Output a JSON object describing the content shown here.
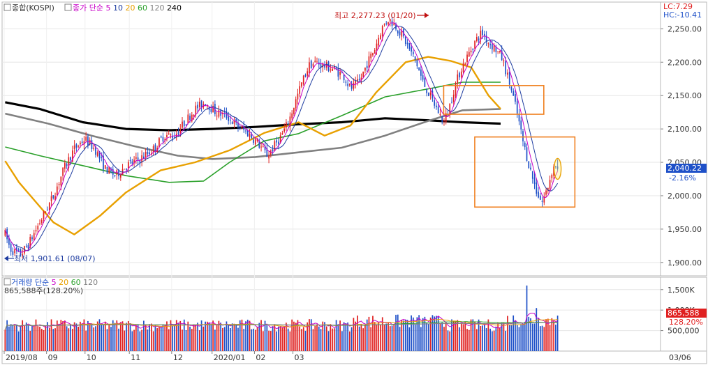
{
  "header": {
    "checkbox_label": "종합(KOSPI)",
    "ma_label": "종가 단순",
    "ma_periods": [
      {
        "label": "5",
        "color": "#c800c8"
      },
      {
        "label": "10",
        "color": "#1e3ca0"
      },
      {
        "label": "20",
        "color": "#e8a000"
      },
      {
        "label": "60",
        "color": "#2aa02a"
      },
      {
        "label": "120",
        "color": "#808080"
      },
      {
        "label": "240",
        "color": "#000000"
      }
    ],
    "lc": "LC:7.29",
    "hc": "HC:-10.41"
  },
  "annotations": {
    "high": "최고 2,277.23 (01/20)",
    "low": "최저 1,901.61 (08/07)"
  },
  "price_axis": {
    "ticks": [
      "2,250.00",
      "2,200.00",
      "2,150.00",
      "2,100.00",
      "2,050.00",
      "2,000.00",
      "1,950.00",
      "1,900.00"
    ],
    "current_value": "2,040.22",
    "current_change": "-2.16%"
  },
  "volume_panel": {
    "ma_label": "거래량 단순",
    "ma_periods": [
      {
        "label": "5",
        "color": "#c800c8"
      },
      {
        "label": "20",
        "color": "#e8a000"
      },
      {
        "label": "60",
        "color": "#2aa02a"
      },
      {
        "label": "120",
        "color": "#808080"
      }
    ],
    "readout": "865,588주(128.20%)",
    "ticks": [
      "1,500K",
      "1,000K",
      "500,000"
    ],
    "current_value": "865,588",
    "current_change": "128.20%"
  },
  "x_axis": {
    "labels": [
      "2019/08",
      "09",
      "10",
      "11",
      "12",
      "2020/01",
      "02",
      "03",
      "03/06"
    ]
  },
  "colors": {
    "up": "#e02020",
    "down": "#1e50c8",
    "ma5": "#c800c8",
    "ma10": "#1e3ca0",
    "ma20": "#e8a000",
    "ma60": "#2aa02a",
    "ma120": "#808080",
    "ma240": "#000000",
    "highlight_box": "#f08020",
    "current_badge": "#1e50c8",
    "volume_badge": "#e02020"
  },
  "chart_data": {
    "type": "candlestick",
    "title": "종합(KOSPI)",
    "price_ylim": [
      1880,
      2290
    ],
    "volume_ylim": [
      0,
      1700000
    ],
    "x_months": [
      "2019/08",
      "09",
      "10",
      "11",
      "12",
      "2020/01",
      "02",
      "03"
    ],
    "ma_lines": {
      "ma20": [
        [
          0,
          2052
        ],
        [
          8,
          2020
        ],
        [
          18,
          1990
        ],
        [
          28,
          1960
        ],
        [
          40,
          1942
        ],
        [
          55,
          1970
        ],
        [
          70,
          2005
        ],
        [
          90,
          2038
        ],
        [
          110,
          2050
        ],
        [
          130,
          2068
        ],
        [
          150,
          2094
        ],
        [
          170,
          2110
        ],
        [
          185,
          2090
        ],
        [
          200,
          2105
        ],
        [
          215,
          2155
        ],
        [
          232,
          2200
        ],
        [
          245,
          2208
        ],
        [
          258,
          2202
        ],
        [
          270,
          2192
        ],
        [
          280,
          2150
        ],
        [
          287,
          2130
        ]
      ],
      "ma60": [
        [
          0,
          2073
        ],
        [
          20,
          2060
        ],
        [
          45,
          2045
        ],
        [
          70,
          2030
        ],
        [
          95,
          2020
        ],
        [
          115,
          2022
        ],
        [
          130,
          2050
        ],
        [
          150,
          2082
        ],
        [
          170,
          2093
        ],
        [
          195,
          2120
        ],
        [
          220,
          2148
        ],
        [
          245,
          2160
        ],
        [
          265,
          2170
        ],
        [
          287,
          2170
        ]
      ],
      "ma120": [
        [
          0,
          2123
        ],
        [
          25,
          2108
        ],
        [
          50,
          2090
        ],
        [
          75,
          2074
        ],
        [
          100,
          2060
        ],
        [
          120,
          2055
        ],
        [
          145,
          2058
        ],
        [
          170,
          2065
        ],
        [
          195,
          2072
        ],
        [
          220,
          2090
        ],
        [
          245,
          2112
        ],
        [
          265,
          2128
        ],
        [
          287,
          2130
        ]
      ],
      "ma240": [
        [
          0,
          2140
        ],
        [
          20,
          2130
        ],
        [
          45,
          2110
        ],
        [
          70,
          2100
        ],
        [
          95,
          2098
        ],
        [
          120,
          2100
        ],
        [
          145,
          2103
        ],
        [
          170,
          2107
        ],
        [
          195,
          2110
        ],
        [
          220,
          2116
        ],
        [
          245,
          2113
        ],
        [
          265,
          2110
        ],
        [
          287,
          2108
        ]
      ]
    },
    "highlights": [
      {
        "x0": 254,
        "x1": 312,
        "y0": 2122,
        "y1": 2165
      },
      {
        "x0": 272,
        "x1": 330,
        "y0": 1983,
        "y1": 2088
      }
    ],
    "last_close": 2040.22,
    "last_change_pct": -2.16,
    "last_volume": 865588
  }
}
